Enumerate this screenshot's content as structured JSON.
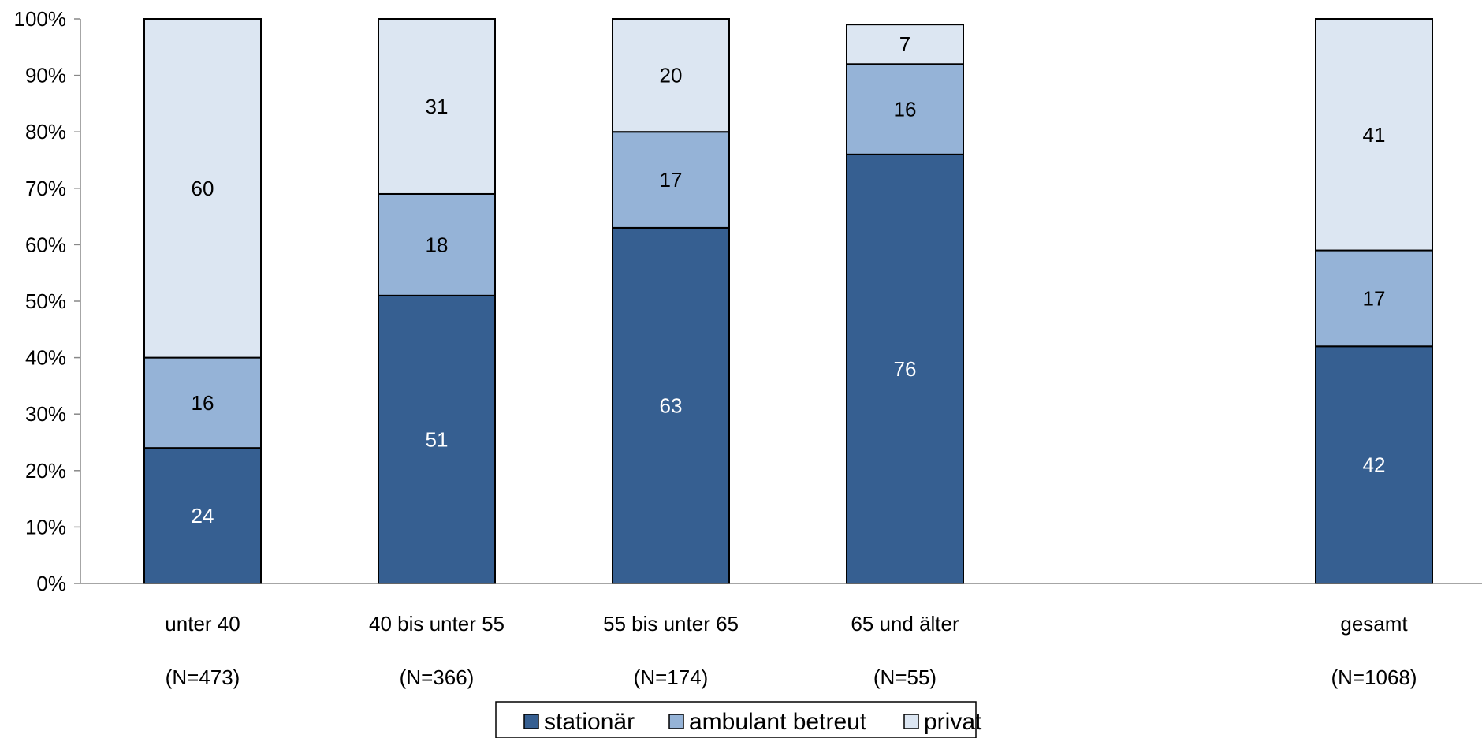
{
  "chart_data": {
    "type": "bar",
    "stacked": true,
    "percent_stacked": true,
    "categories": [
      "unter 40",
      "40 bis unter 55",
      "55 bis unter 65",
      "65 und älter",
      "gesamt"
    ],
    "category_n": [
      "(N=473)",
      "(N=366)",
      "(N=174)",
      "(N=55)",
      "(N=1068)"
    ],
    "series": [
      {
        "name": "stationär",
        "values": [
          24,
          51,
          63,
          76,
          42
        ],
        "color": "#365F91",
        "label_color": "#FFFFFF"
      },
      {
        "name": "ambulant betreut",
        "values": [
          16,
          18,
          17,
          16,
          17
        ],
        "color": "#95B3D7",
        "label_color": "#000000"
      },
      {
        "name": "privat",
        "values": [
          60,
          31,
          20,
          7,
          41
        ],
        "color": "#DCE6F2",
        "label_color": "#000000"
      }
    ],
    "y_ticks": [
      "0%",
      "10%",
      "20%",
      "30%",
      "40%",
      "50%",
      "60%",
      "70%",
      "80%",
      "90%",
      "100%"
    ],
    "ylim": [
      0,
      100
    ],
    "grid": false,
    "legend_position": "bottom-center",
    "title": "",
    "xlabel": "",
    "ylabel": ""
  }
}
